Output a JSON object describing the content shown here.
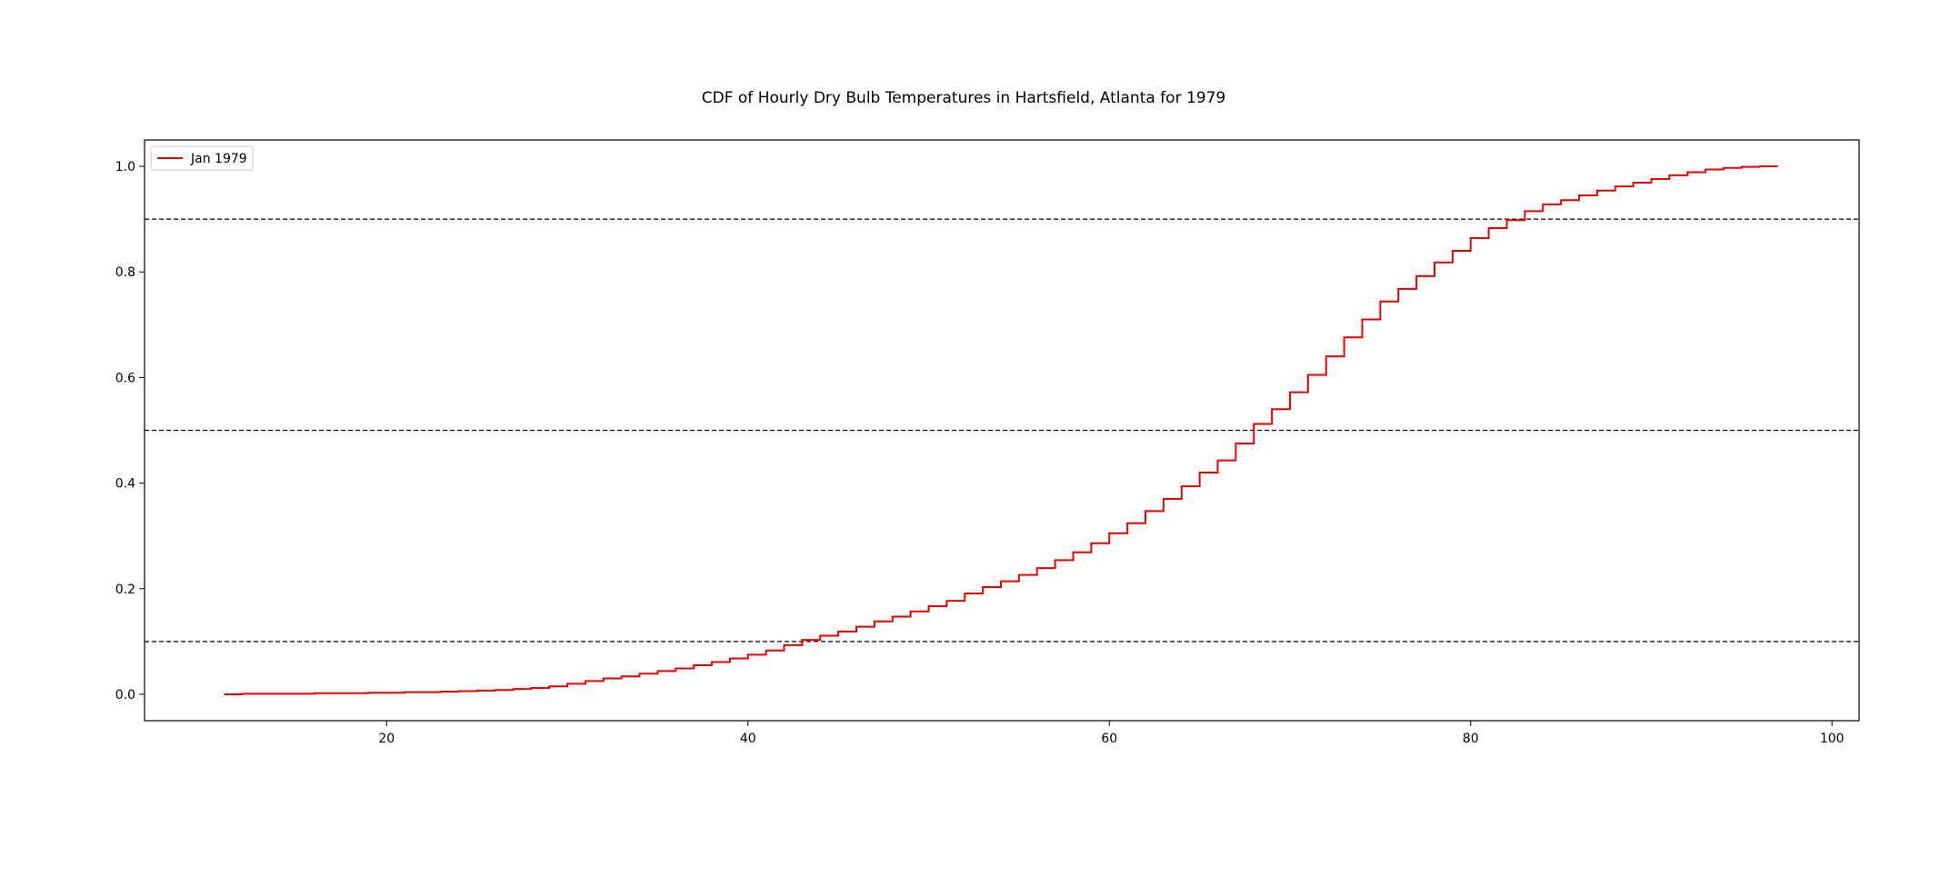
{
  "chart_data": {
    "type": "line",
    "title": "CDF of Hourly Dry Bulb Temperatures in Hartsfield, Atlanta for 1979",
    "xlabel": "",
    "ylabel": "",
    "xlim": [
      6.6,
      101.5
    ],
    "ylim": [
      -0.05,
      1.05
    ],
    "x_ticks": [
      20,
      40,
      60,
      80,
      100
    ],
    "y_ticks": [
      0.0,
      0.2,
      0.4,
      0.6,
      0.8,
      1.0
    ],
    "x_tick_labels": [
      "20",
      "40",
      "60",
      "80",
      "100"
    ],
    "y_tick_labels": [
      "0.0",
      "0.2",
      "0.4",
      "0.6",
      "0.8",
      "1.0"
    ],
    "grid": false,
    "legend": {
      "placement": "top-left"
    },
    "reference_lines": [
      {
        "y": 0.1,
        "style": "dashed",
        "color": "#000000"
      },
      {
        "y": 0.5,
        "style": "dashed",
        "color": "#000000"
      },
      {
        "y": 0.9,
        "style": "dashed",
        "color": "#000000"
      }
    ],
    "series": [
      {
        "name": "Jan 1979",
        "color": "#ee0000",
        "step": "post",
        "x": [
          11,
          12,
          13,
          14,
          15,
          16,
          17,
          18,
          19,
          20,
          21,
          22,
          23,
          24,
          25,
          26,
          27,
          28,
          29,
          30,
          31,
          32,
          33,
          34,
          35,
          36,
          37,
          38,
          39,
          40,
          41,
          42,
          43,
          44,
          45,
          46,
          47,
          48,
          49,
          50,
          51,
          52,
          53,
          54,
          55,
          56,
          57,
          58,
          59,
          60,
          61,
          62,
          63,
          64,
          65,
          66,
          67,
          68,
          69,
          70,
          71,
          72,
          73,
          74,
          75,
          76,
          77,
          78,
          79,
          80,
          81,
          82,
          83,
          84,
          85,
          86,
          87,
          88,
          89,
          90,
          91,
          92,
          93,
          94,
          95,
          96,
          97
        ],
        "y": [
          0.0,
          0.001,
          0.001,
          0.001,
          0.001,
          0.002,
          0.002,
          0.002,
          0.003,
          0.003,
          0.004,
          0.004,
          0.005,
          0.006,
          0.007,
          0.008,
          0.01,
          0.012,
          0.015,
          0.02,
          0.025,
          0.03,
          0.034,
          0.039,
          0.044,
          0.049,
          0.055,
          0.061,
          0.068,
          0.075,
          0.083,
          0.093,
          0.103,
          0.111,
          0.119,
          0.128,
          0.138,
          0.147,
          0.157,
          0.167,
          0.177,
          0.191,
          0.203,
          0.214,
          0.226,
          0.239,
          0.254,
          0.269,
          0.286,
          0.305,
          0.324,
          0.347,
          0.37,
          0.394,
          0.42,
          0.443,
          0.475,
          0.512,
          0.54,
          0.572,
          0.605,
          0.64,
          0.676,
          0.71,
          0.744,
          0.768,
          0.792,
          0.818,
          0.84,
          0.864,
          0.883,
          0.898,
          0.915,
          0.928,
          0.936,
          0.945,
          0.954,
          0.962,
          0.969,
          0.976,
          0.983,
          0.989,
          0.994,
          0.997,
          0.999,
          1.0,
          1.0
        ]
      }
    ]
  }
}
